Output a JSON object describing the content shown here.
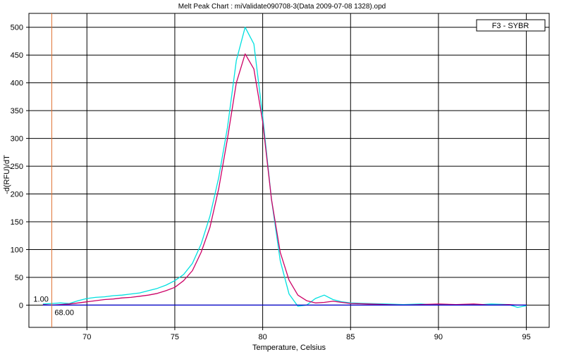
{
  "chart_data": {
    "type": "line",
    "title": "Melt Peak Chart : miValidate090708-3(Data 2009-07-08 1328).opd",
    "xlabel": "Temperature, Celsius",
    "ylabel": "-d(RFU)/dT",
    "xlim": [
      66.7,
      96.3
    ],
    "ylim": [
      -40,
      525
    ],
    "x_ticks": [
      70,
      75,
      80,
      85,
      90,
      95
    ],
    "y_ticks": [
      0,
      50,
      100,
      150,
      200,
      250,
      300,
      350,
      400,
      450,
      500
    ],
    "grid": true,
    "legend": {
      "placement": "top-right",
      "label": "F3 - SYBR"
    },
    "threshold_line": {
      "x": 68.0,
      "color": "#e07030"
    },
    "threshold_labels": {
      "upper": "1.00",
      "lower": "68.00"
    },
    "series": [
      {
        "color": "#00e0e0",
        "x": [
          67.5,
          68,
          68.5,
          69,
          69.5,
          70,
          70.5,
          71,
          71.5,
          72,
          72.5,
          73,
          73.5,
          74,
          74.5,
          75,
          75.5,
          76,
          76.5,
          77,
          77.5,
          78,
          78.5,
          79,
          79.5,
          80,
          80.5,
          81,
          81.5,
          82,
          82.5,
          83,
          83.5,
          84,
          84.5,
          85,
          86,
          87,
          88,
          89,
          90,
          91,
          92,
          93,
          94,
          94.5,
          95
        ],
        "y": [
          2,
          3,
          4,
          3,
          8,
          12,
          14,
          15,
          17,
          18,
          20,
          22,
          26,
          30,
          36,
          44,
          55,
          75,
          110,
          160,
          230,
          320,
          440,
          500,
          470,
          340,
          190,
          80,
          20,
          -2,
          0,
          12,
          18,
          10,
          6,
          4,
          3,
          2,
          1,
          2,
          0,
          1,
          0,
          2,
          1,
          -4,
          -1
        ]
      },
      {
        "color": "#cc0066",
        "x": [
          67.5,
          68,
          68.5,
          69,
          69.5,
          70,
          70.5,
          71,
          71.5,
          72,
          72.5,
          73,
          73.5,
          74,
          74.5,
          75,
          75.5,
          76,
          76.5,
          77,
          77.5,
          78,
          78.5,
          79,
          79.5,
          80,
          80.5,
          81,
          81.5,
          82,
          82.5,
          83,
          83.5,
          84,
          84.5,
          85,
          86,
          87,
          88,
          89,
          90,
          91,
          92,
          93,
          94,
          94.5,
          95
        ],
        "y": [
          1,
          0,
          1,
          2,
          4,
          6,
          8,
          10,
          11,
          13,
          14,
          16,
          18,
          21,
          26,
          32,
          44,
          62,
          95,
          140,
          210,
          300,
          400,
          452,
          425,
          330,
          190,
          95,
          45,
          18,
          8,
          4,
          5,
          7,
          5,
          3,
          2,
          1,
          0,
          1,
          2,
          1,
          2,
          0,
          1,
          0,
          0
        ]
      },
      {
        "color": "#0000cc",
        "x": [
          67.5,
          70,
          72.5,
          75,
          77.5,
          80,
          82.5,
          85,
          87.5,
          90,
          92.5,
          95
        ],
        "y": [
          0,
          0,
          0,
          0,
          0,
          0,
          0,
          0,
          0,
          0,
          0,
          0
        ]
      }
    ]
  }
}
